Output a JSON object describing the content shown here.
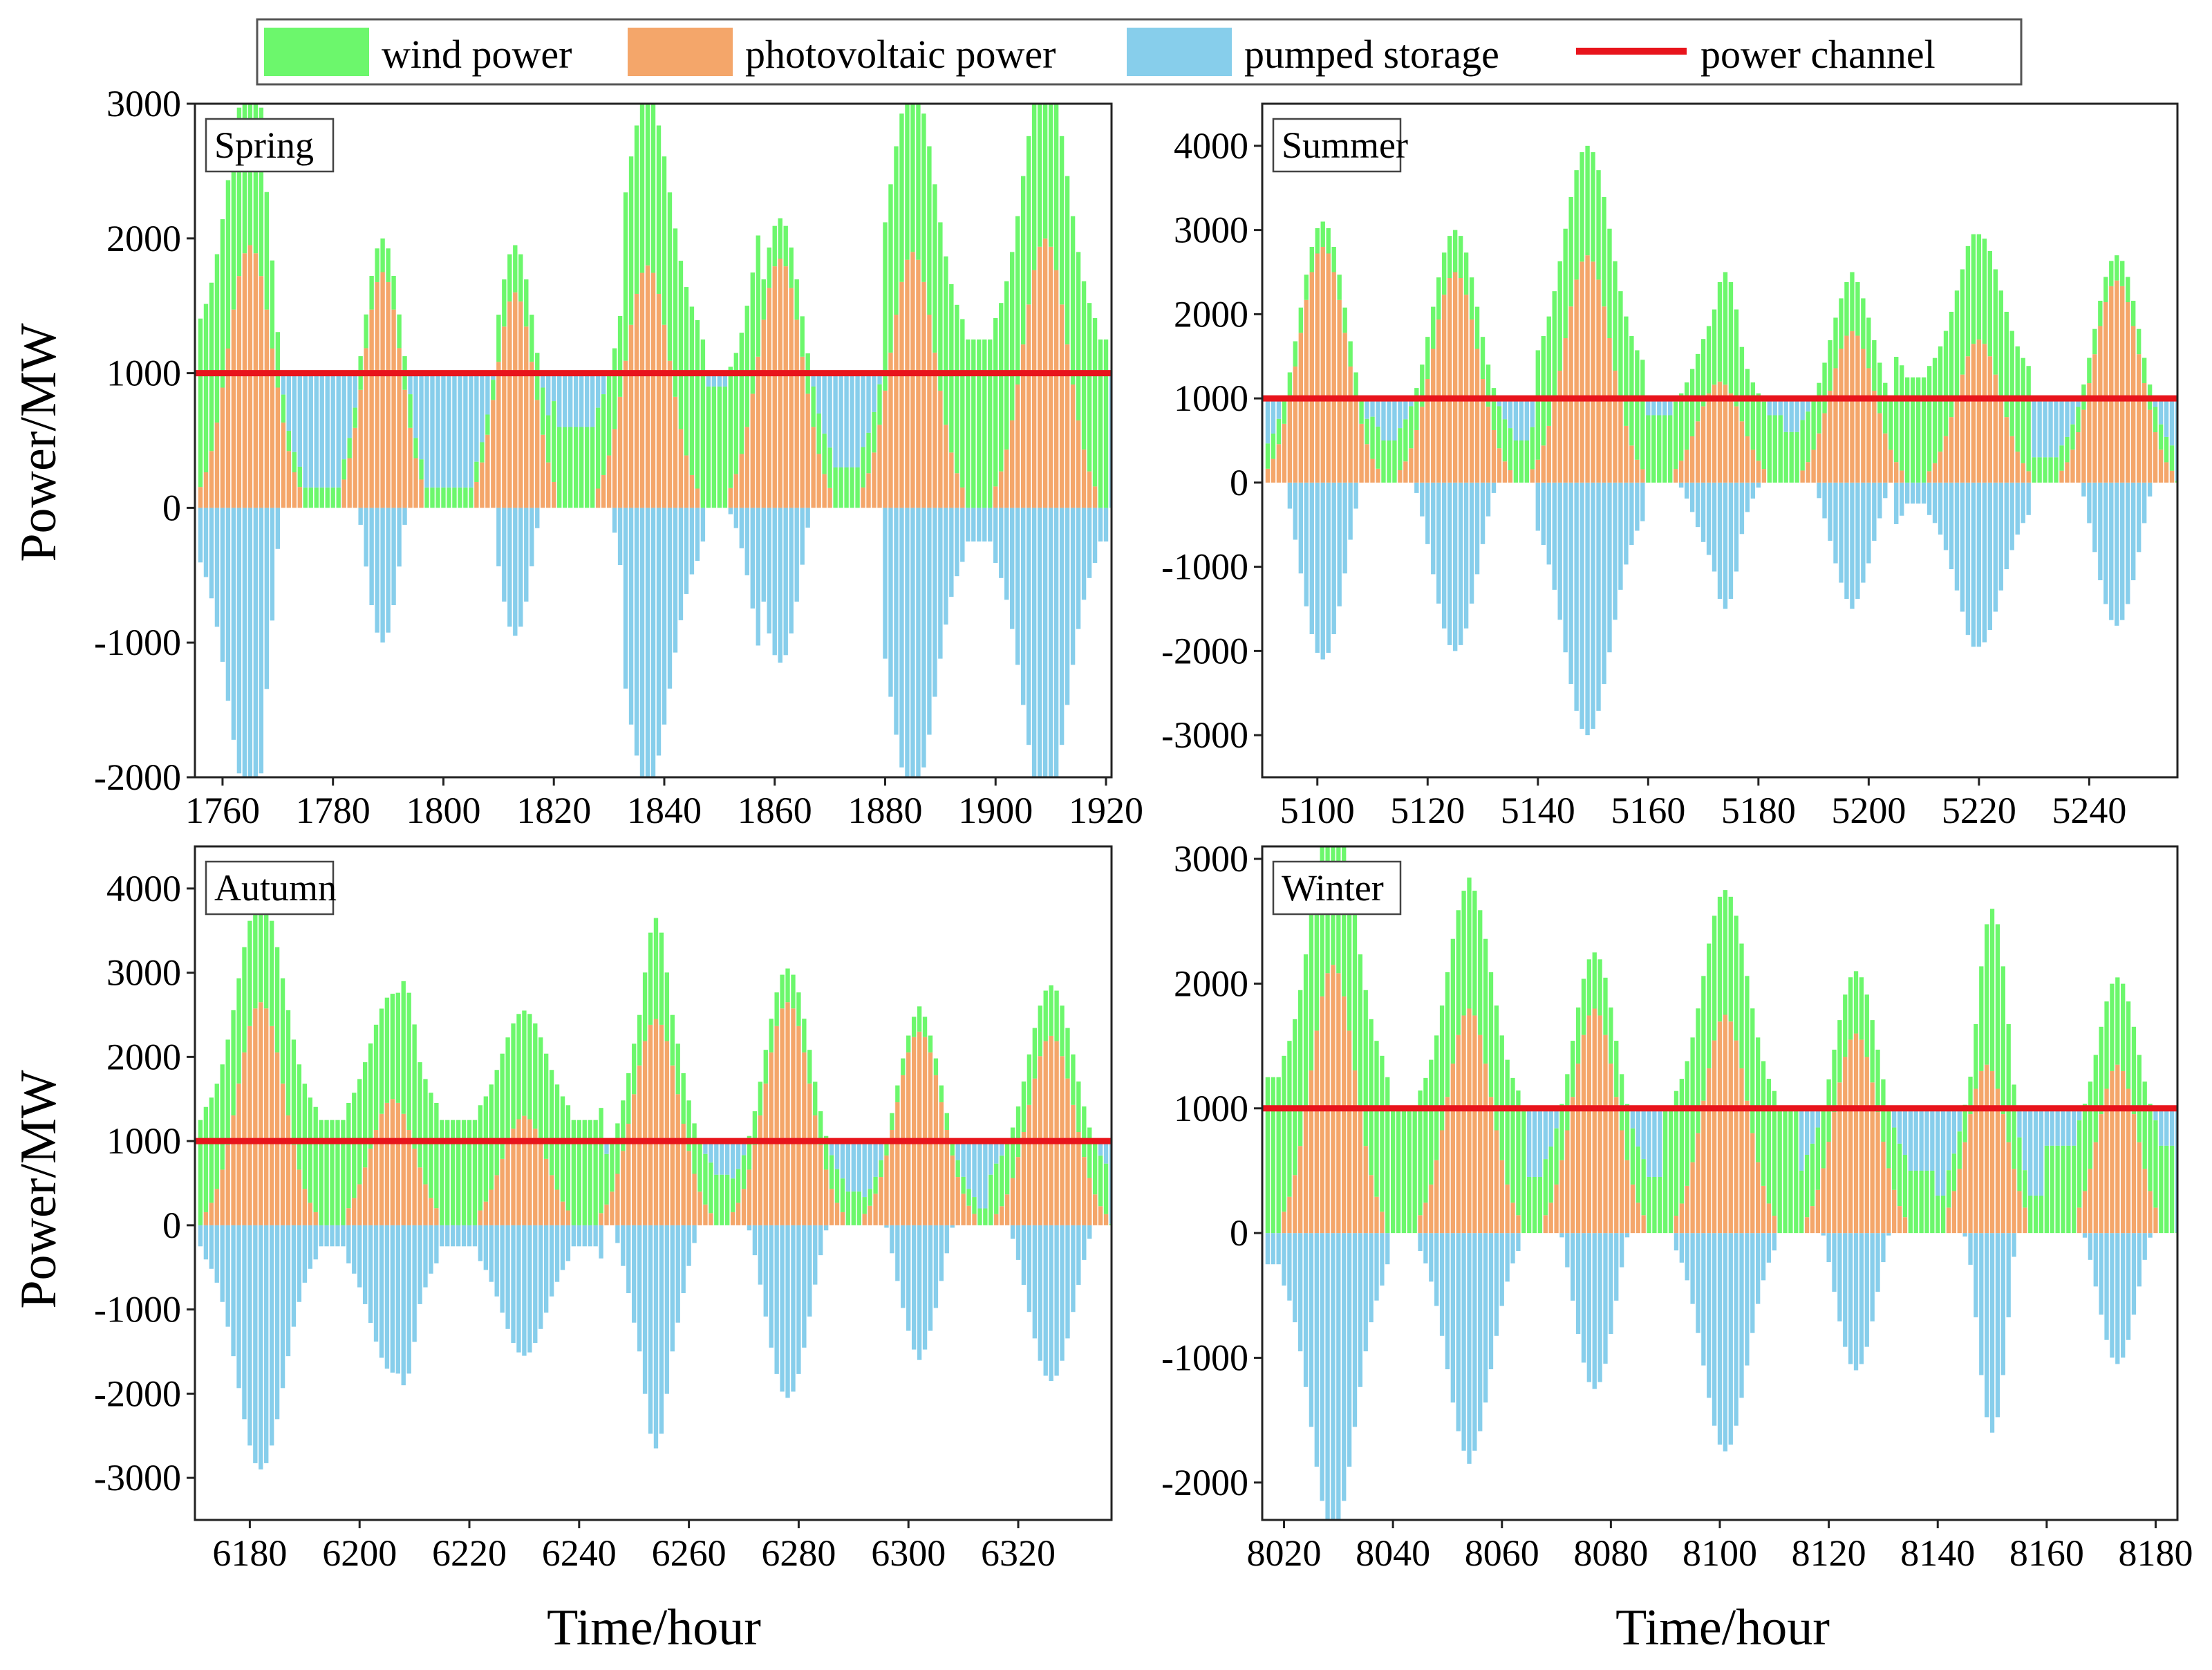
{
  "figure": {
    "y_axis_title": "Power/MW",
    "x_axis_title": "Time/hour"
  },
  "legend": {
    "items": [
      {
        "label": "wind power",
        "color": "#6cf76c",
        "kind": "patch"
      },
      {
        "label": "photovoltaic power",
        "color": "#f4a66a",
        "kind": "patch"
      },
      {
        "label": "pumped storage",
        "color": "#87ceeb",
        "kind": "patch"
      },
      {
        "label": "power channel",
        "color": "#e8141c",
        "kind": "line"
      }
    ]
  },
  "chart_data": [
    {
      "type": "bar",
      "stacked": true,
      "panel": "Spring",
      "title": "Spring",
      "xlabel": "",
      "ylabel": "Power/MW",
      "xlim": [
        1755,
        1921
      ],
      "ylim": [
        -2000,
        3000
      ],
      "xticks": [
        1760,
        1780,
        1800,
        1820,
        1840,
        1860,
        1880,
        1900,
        1920
      ],
      "yticks": [
        -2000,
        -1000,
        0,
        1000,
        2000,
        3000
      ],
      "power_channel": 1000,
      "hours": [
        1756,
        1921
      ],
      "pv_peaks": [
        {
          "center": 1765,
          "peak": 1950,
          "width": 4
        },
        {
          "center": 1789,
          "peak": 1750,
          "width": 3.4
        },
        {
          "center": 1813,
          "peak": 1600,
          "width": 3.4
        },
        {
          "center": 1837,
          "peak": 1800,
          "width": 4
        },
        {
          "center": 1861,
          "peak": 1850,
          "width": 4
        },
        {
          "center": 1885,
          "peak": 1900,
          "width": 4
        },
        {
          "center": 1909,
          "peak": 2000,
          "width": 4
        }
      ],
      "wind_peaks": [
        {
          "center": 1766,
          "peak": 2850
        },
        {
          "center": 1838,
          "peak": 2150
        },
        {
          "center": 1887,
          "peak": 2600
        },
        {
          "center": 1909,
          "peak": 2900
        }
      ],
      "wind_base": [
        {
          "from": 1756,
          "to": 1768,
          "value": 1250
        },
        {
          "from": 1768,
          "to": 1785,
          "value": 150
        },
        {
          "from": 1785,
          "to": 1795,
          "value": 250
        },
        {
          "from": 1795,
          "to": 1810,
          "value": 150
        },
        {
          "from": 1810,
          "to": 1820,
          "value": 350
        },
        {
          "from": 1820,
          "to": 1833,
          "value": 600
        },
        {
          "from": 1833,
          "to": 1848,
          "value": 1250
        },
        {
          "from": 1848,
          "to": 1858,
          "value": 900
        },
        {
          "from": 1858,
          "to": 1880,
          "value": 300
        },
        {
          "from": 1880,
          "to": 1900,
          "value": 1250
        },
        {
          "from": 1900,
          "to": 1921,
          "value": 1250
        }
      ],
      "series": [
        {
          "name": "wind power"
        },
        {
          "name": "photovoltaic power"
        },
        {
          "name": "pumped storage"
        },
        {
          "name": "power channel",
          "values": [
            1000
          ]
        }
      ]
    },
    {
      "type": "bar",
      "stacked": true,
      "panel": "Summer",
      "title": "Summer",
      "xlabel": "",
      "ylabel": "",
      "xlim": [
        5090,
        5256
      ],
      "ylim": [
        -3500,
        4500
      ],
      "xticks": [
        5100,
        5120,
        5140,
        5160,
        5180,
        5200,
        5220,
        5240
      ],
      "yticks": [
        -3000,
        -2000,
        -1000,
        0,
        1000,
        2000,
        3000,
        4000
      ],
      "power_channel": 1000,
      "hours": [
        5091,
        5256
      ],
      "pv_peaks": [
        {
          "center": 5101,
          "peak": 2800,
          "width": 4.2
        },
        {
          "center": 5125,
          "peak": 2500,
          "width": 4.2
        },
        {
          "center": 5149,
          "peak": 2700,
          "width": 4.2
        },
        {
          "center": 5173,
          "peak": 1200,
          "width": 4
        },
        {
          "center": 5197,
          "peak": 1800,
          "width": 4
        },
        {
          "center": 5220,
          "peak": 1700,
          "width": 4
        },
        {
          "center": 5245,
          "peak": 2400,
          "width": 4.2
        }
      ],
      "wind_peaks": [
        {
          "center": 5101,
          "peak": 2850
        },
        {
          "center": 5125,
          "peak": 2600
        },
        {
          "center": 5149,
          "peak": 3900
        },
        {
          "center": 5174,
          "peak": 2500
        },
        {
          "center": 5197,
          "peak": 2500
        },
        {
          "center": 5219,
          "peak": 2950
        },
        {
          "center": 5246,
          "peak": 2550
        }
      ],
      "wind_base": [
        {
          "from": 5091,
          "to": 5110,
          "value": 300
        },
        {
          "from": 5110,
          "to": 5140,
          "value": 500
        },
        {
          "from": 5140,
          "to": 5160,
          "value": 1300
        },
        {
          "from": 5160,
          "to": 5185,
          "value": 800
        },
        {
          "from": 5185,
          "to": 5205,
          "value": 600
        },
        {
          "from": 5205,
          "to": 5230,
          "value": 1250
        },
        {
          "from": 5230,
          "to": 5256,
          "value": 300
        }
      ],
      "series": [
        {
          "name": "wind power"
        },
        {
          "name": "photovoltaic power"
        },
        {
          "name": "pumped storage"
        },
        {
          "name": "power channel",
          "values": [
            1000
          ]
        }
      ]
    },
    {
      "type": "bar",
      "stacked": true,
      "panel": "Autumn",
      "title": "Autumn",
      "xlabel": "Time/hour",
      "ylabel": "Power/MW",
      "xlim": [
        6170,
        6337
      ],
      "ylim": [
        -3500,
        4500
      ],
      "xticks": [
        6180,
        6200,
        6220,
        6240,
        6260,
        6280,
        6300,
        6320
      ],
      "yticks": [
        -3000,
        -2000,
        -1000,
        0,
        1000,
        2000,
        3000,
        4000
      ],
      "power_channel": 1000,
      "hours": [
        6171,
        6337
      ],
      "pv_peaks": [
        {
          "center": 6182,
          "peak": 2650,
          "width": 4.2
        },
        {
          "center": 6206,
          "peak": 1500,
          "width": 4
        },
        {
          "center": 6230,
          "peak": 1300,
          "width": 4
        },
        {
          "center": 6254,
          "peak": 2450,
          "width": 4.2
        },
        {
          "center": 6278,
          "peak": 2650,
          "width": 4.2
        },
        {
          "center": 6302,
          "peak": 2300,
          "width": 4.2
        },
        {
          "center": 6326,
          "peak": 2250,
          "width": 4.2
        }
      ],
      "wind_peaks": [
        {
          "center": 6183,
          "peak": 3650
        },
        {
          "center": 6208,
          "peak": 2900
        },
        {
          "center": 6230,
          "peak": 2550
        },
        {
          "center": 6254,
          "peak": 3650
        },
        {
          "center": 6278,
          "peak": 2800
        },
        {
          "center": 6302,
          "peak": 2600
        },
        {
          "center": 6327,
          "peak": 2250
        }
      ],
      "wind_base": [
        {
          "from": 6171,
          "to": 6195,
          "value": 1250
        },
        {
          "from": 6195,
          "to": 6222,
          "value": 1250
        },
        {
          "from": 6222,
          "to": 6245,
          "value": 1250
        },
        {
          "from": 6245,
          "to": 6268,
          "value": 600
        },
        {
          "from": 6268,
          "to": 6292,
          "value": 400
        },
        {
          "from": 6292,
          "to": 6315,
          "value": 200
        },
        {
          "from": 6315,
          "to": 6337,
          "value": 600
        }
      ],
      "series": [
        {
          "name": "wind power"
        },
        {
          "name": "photovoltaic power"
        },
        {
          "name": "pumped storage"
        },
        {
          "name": "power channel",
          "values": [
            1000
          ]
        }
      ]
    },
    {
      "type": "bar",
      "stacked": true,
      "panel": "Winter",
      "title": "Winter",
      "xlabel": "Time/hour",
      "ylabel": "",
      "xlim": [
        8016,
        8184
      ],
      "ylim": [
        -2300,
        3100
      ],
      "xticks": [
        8020,
        8040,
        8060,
        8080,
        8100,
        8120,
        8140,
        8160,
        8180
      ],
      "yticks": [
        -2000,
        -1000,
        0,
        1000,
        2000,
        3000
      ],
      "power_channel": 1000,
      "hours": [
        8017,
        8184
      ],
      "pv_peaks": [
        {
          "center": 8029,
          "peak": 2150,
          "width": 4
        },
        {
          "center": 8054,
          "peak": 1800,
          "width": 4
        },
        {
          "center": 8077,
          "peak": 1800,
          "width": 4
        },
        {
          "center": 8101,
          "peak": 1750,
          "width": 4
        },
        {
          "center": 8125,
          "peak": 1600,
          "width": 4
        },
        {
          "center": 8149,
          "peak": 1350,
          "width": 3.6
        },
        {
          "center": 8173,
          "peak": 1350,
          "width": 3.6
        }
      ],
      "wind_peaks": [
        {
          "center": 8030,
          "peak": 2150
        },
        {
          "center": 8054,
          "peak": 2850
        },
        {
          "center": 8078,
          "peak": 2150
        },
        {
          "center": 8102,
          "peak": 2550
        },
        {
          "center": 8127,
          "peak": 1600
        },
        {
          "center": 8150,
          "peak": 2600
        },
        {
          "center": 8173,
          "peak": 1450
        }
      ],
      "wind_base": [
        {
          "from": 8017,
          "to": 8040,
          "value": 1250
        },
        {
          "from": 8040,
          "to": 8065,
          "value": 1000
        },
        {
          "from": 8065,
          "to": 8090,
          "value": 450
        },
        {
          "from": 8090,
          "to": 8115,
          "value": 1000
        },
        {
          "from": 8115,
          "to": 8140,
          "value": 500
        },
        {
          "from": 8140,
          "to": 8160,
          "value": 300
        },
        {
          "from": 8160,
          "to": 8184,
          "value": 700
        }
      ],
      "series": [
        {
          "name": "wind power"
        },
        {
          "name": "photovoltaic power"
        },
        {
          "name": "pumped storage"
        },
        {
          "name": "power channel",
          "values": [
            1000
          ]
        }
      ]
    }
  ]
}
